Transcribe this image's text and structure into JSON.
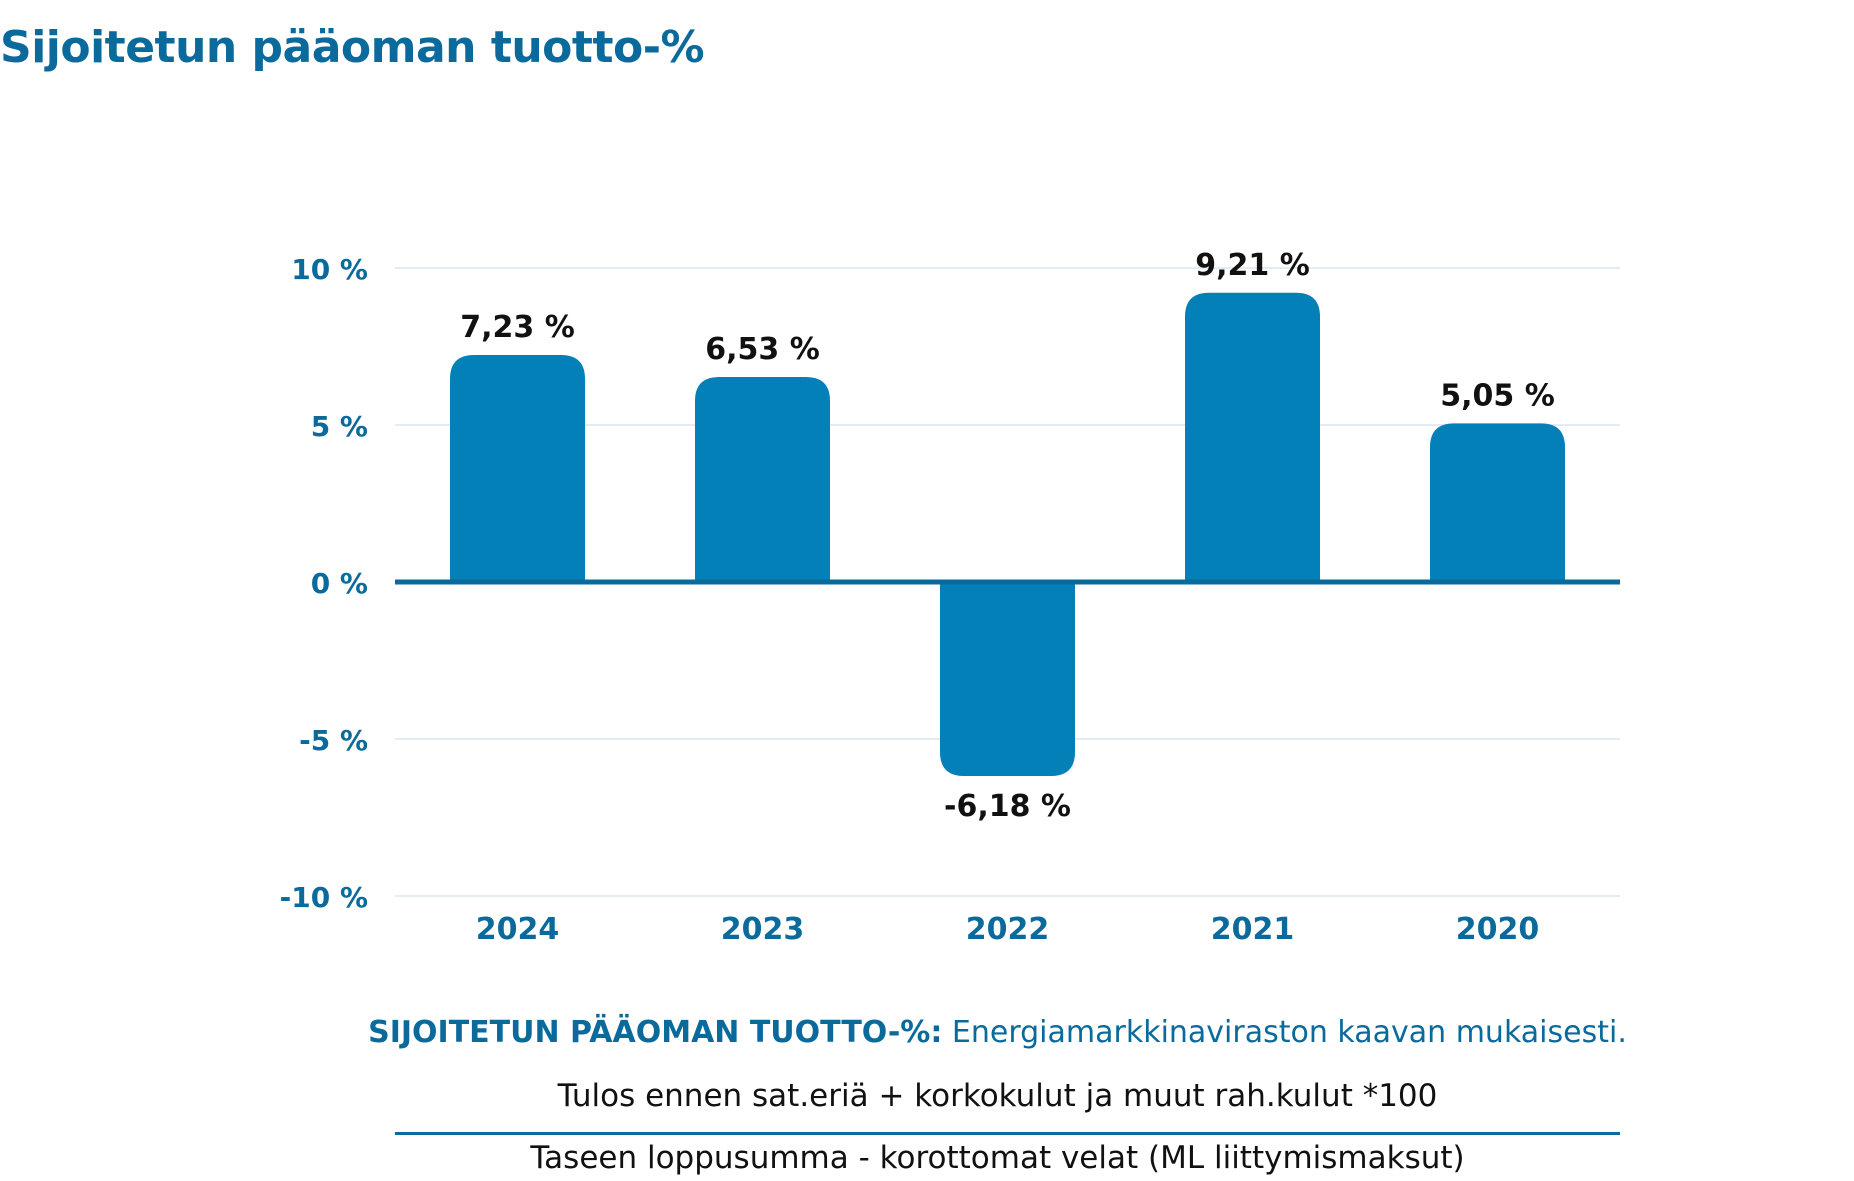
{
  "title": "Sijoitetun pääoman tuotto-%",
  "colors": {
    "bar": "#0480b8",
    "axis_text": "#0a6a9c",
    "zero_line": "#0a6a9c",
    "grid": "#d9e6ee"
  },
  "chart_data": {
    "type": "bar",
    "categories": [
      "2024",
      "2023",
      "2022",
      "2021",
      "2020"
    ],
    "values": [
      7.23,
      6.53,
      -6.18,
      9.21,
      5.05
    ],
    "value_labels": [
      "7,23 %",
      "6,53 %",
      "-6,18 %",
      "9,21 %",
      "5,05 %"
    ],
    "yticks": [
      10,
      5,
      0,
      -5,
      -10
    ],
    "ytick_labels": [
      "10 %",
      "5 %",
      "0 %",
      "-5 %",
      "-10 %"
    ],
    "ylim": [
      -10,
      10
    ],
    "grid": true,
    "title": "",
    "xlabel": "",
    "ylabel": ""
  },
  "note": {
    "label": "SIJOITETUN PÄÄOMAN TUOTTO-%:",
    "text": "Energiamarkkinaviraston kaavan mukaisesti.",
    "numerator": "Tulos ennen sat.eriä + korkokulut ja muut rah.kulut *100",
    "denominator": "Taseen loppusumma - korottomat velat (ML liittymismaksut)"
  }
}
